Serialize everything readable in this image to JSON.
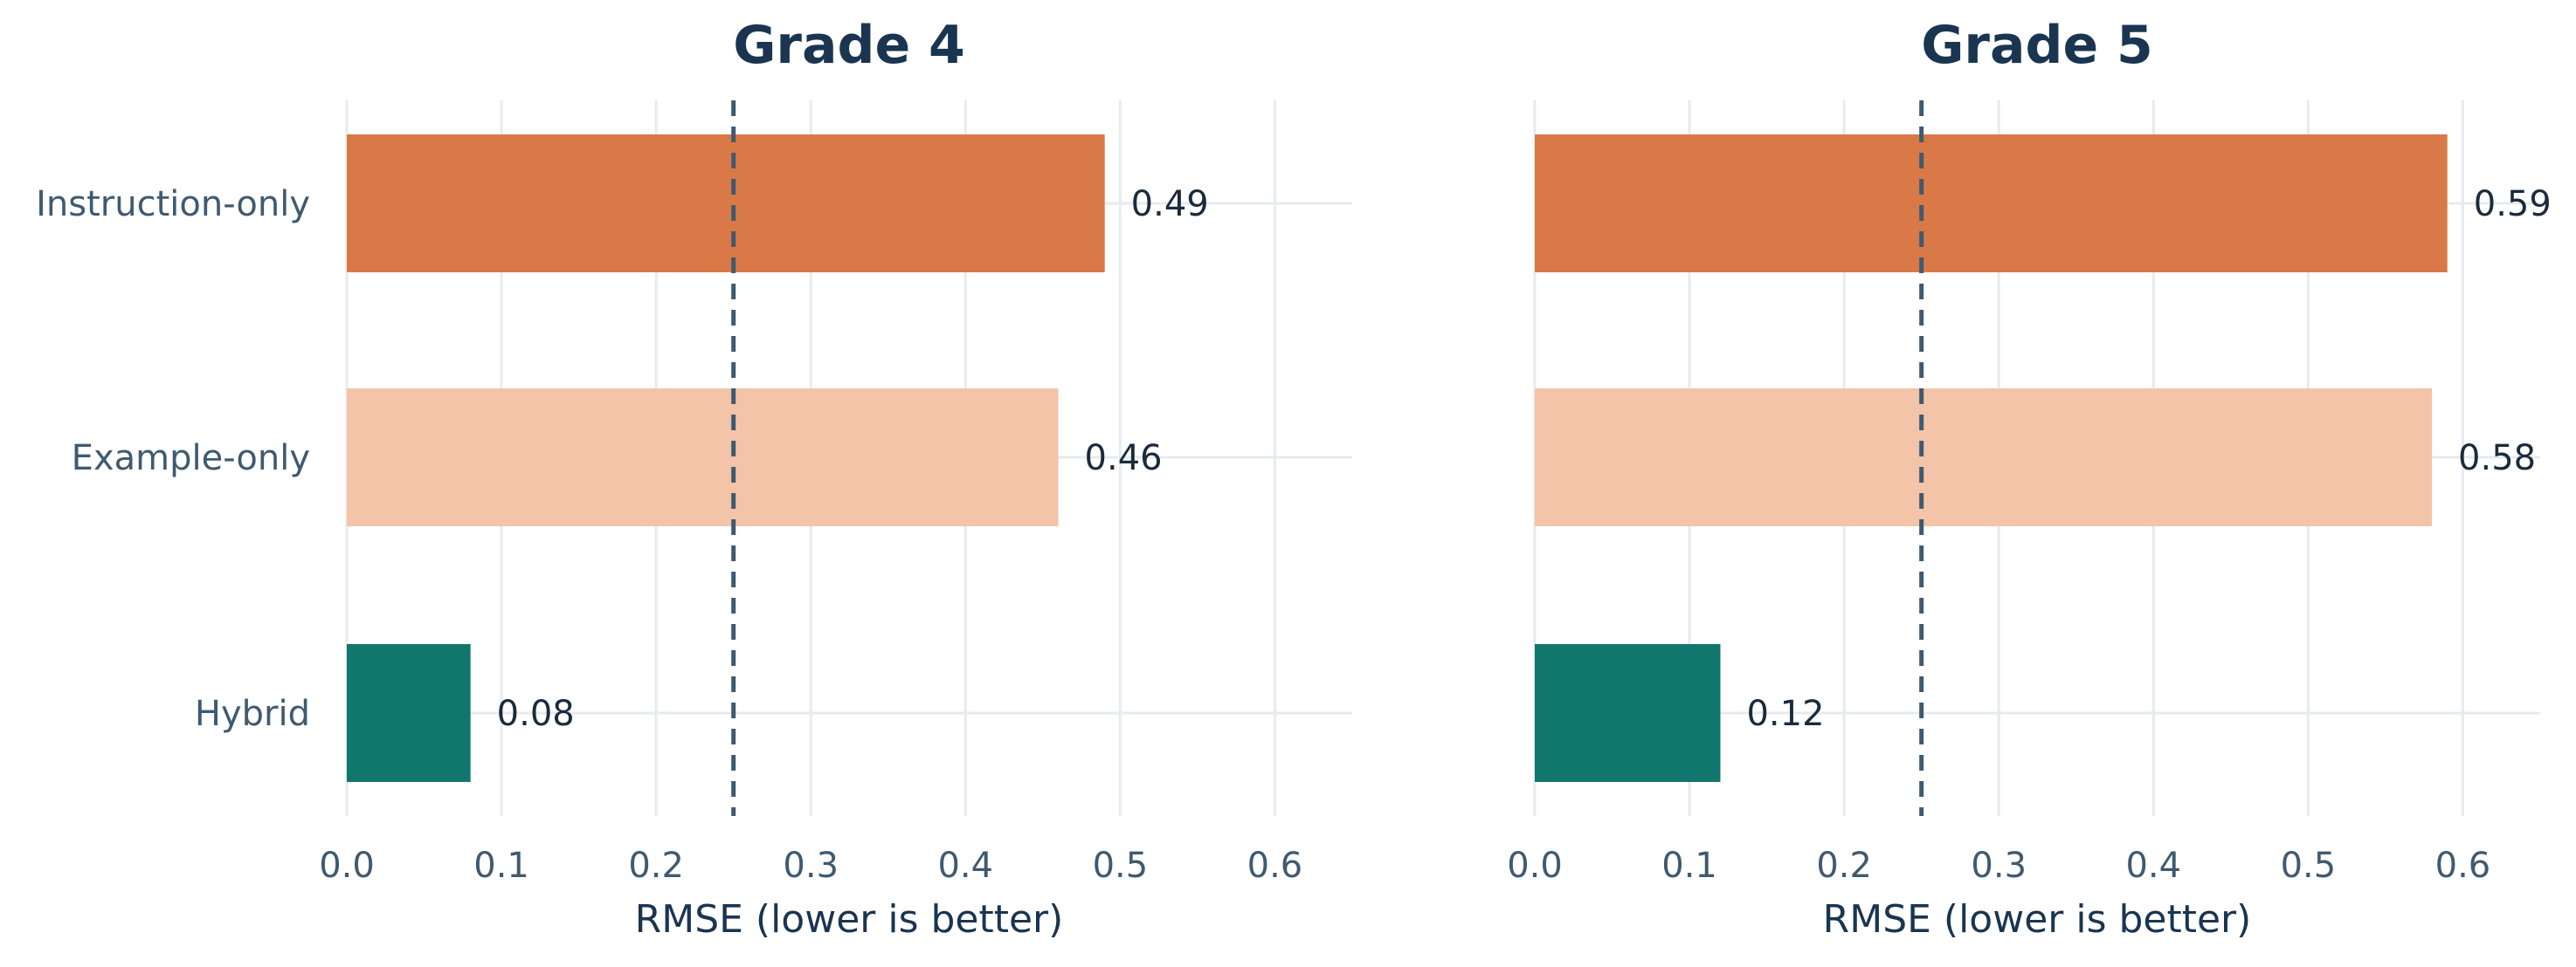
{
  "chart_data": [
    {
      "type": "bar",
      "orientation": "horizontal",
      "title": "Grade 4",
      "categories": [
        "Instruction-only",
        "Example-only",
        "Hybrid"
      ],
      "values": [
        0.49,
        0.46,
        0.08
      ],
      "value_labels": [
        "0.49",
        "0.46",
        "0.08"
      ],
      "colors": [
        "#d97947",
        "#f3c4a8",
        "#11766e"
      ],
      "xlabel": "RMSE (lower is better)",
      "ylabel": "",
      "xlim": [
        0,
        0.65
      ],
      "xticks": [
        0.0,
        0.1,
        0.2,
        0.3,
        0.4,
        0.5,
        0.6
      ],
      "xtick_labels": [
        "0.0",
        "0.1",
        "0.2",
        "0.3",
        "0.4",
        "0.5",
        "0.6"
      ],
      "reference_line": 0.25,
      "grid": true
    },
    {
      "type": "bar",
      "orientation": "horizontal",
      "title": "Grade 5",
      "categories": [
        "Instruction-only",
        "Example-only",
        "Hybrid"
      ],
      "values": [
        0.59,
        0.58,
        0.12
      ],
      "value_labels": [
        "0.59",
        "0.58",
        "0.12"
      ],
      "colors": [
        "#d97947",
        "#f3c4a8",
        "#11766e"
      ],
      "xlabel": "RMSE (lower is better)",
      "ylabel": "",
      "xlim": [
        0,
        0.65
      ],
      "xticks": [
        0.0,
        0.1,
        0.2,
        0.3,
        0.4,
        0.5,
        0.6
      ],
      "xtick_labels": [
        "0.0",
        "0.1",
        "0.2",
        "0.3",
        "0.4",
        "0.5",
        "0.6"
      ],
      "reference_line": 0.25,
      "grid": true,
      "show_category_labels": false
    }
  ]
}
